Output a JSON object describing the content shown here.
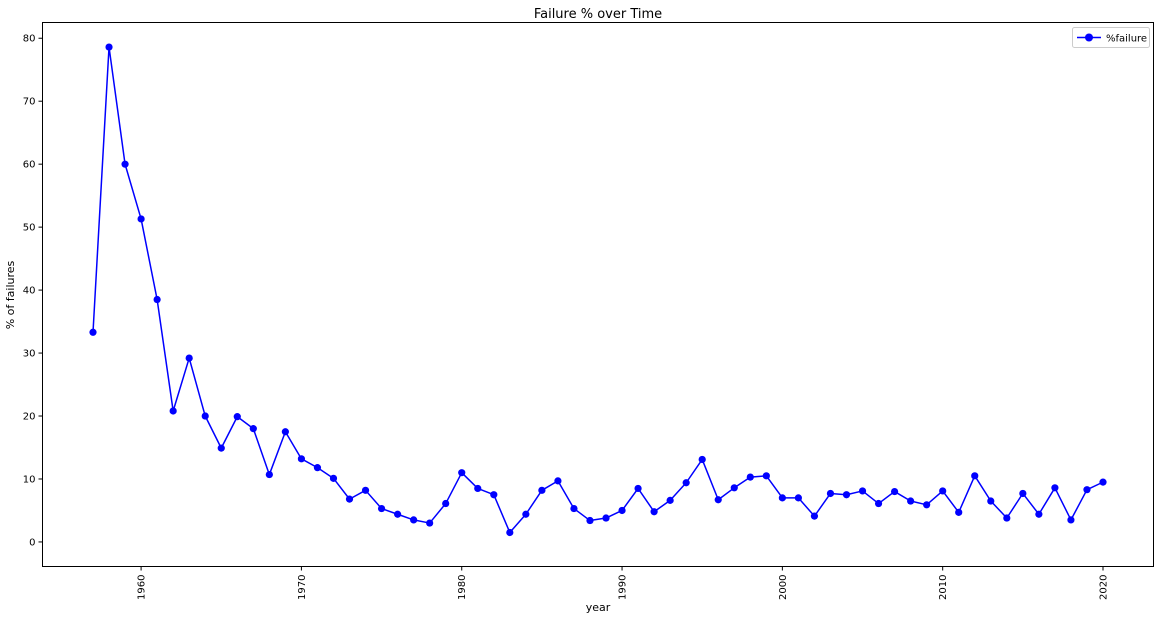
{
  "chart_data": {
    "type": "line",
    "title": "Failure % over Time",
    "xlabel": "year",
    "ylabel": "% of failures",
    "xlim": [
      1953.85,
      2023.15
    ],
    "ylim": [
      -3.9,
      82.5
    ],
    "xticks": [
      1960,
      1970,
      1980,
      1990,
      2000,
      2010,
      2020
    ],
    "yticks": [
      0,
      10,
      20,
      30,
      40,
      50,
      60,
      70,
      80
    ],
    "xtick_rotation": 90,
    "grid": false,
    "legend_position": "top-right",
    "series": [
      {
        "name": "%failure",
        "color": "#0000ff",
        "marker": "circle",
        "x": [
          1957,
          1958,
          1959,
          1960,
          1961,
          1962,
          1963,
          1964,
          1965,
          1966,
          1967,
          1968,
          1969,
          1970,
          1971,
          1972,
          1973,
          1974,
          1975,
          1976,
          1977,
          1978,
          1979,
          1980,
          1981,
          1982,
          1983,
          1984,
          1985,
          1986,
          1987,
          1988,
          1989,
          1990,
          1991,
          1992,
          1993,
          1994,
          1995,
          1996,
          1997,
          1998,
          1999,
          2000,
          2001,
          2002,
          2003,
          2004,
          2005,
          2006,
          2007,
          2008,
          2009,
          2010,
          2011,
          2012,
          2013,
          2014,
          2015,
          2016,
          2017,
          2018,
          2019,
          2020
        ],
        "y": [
          33.3,
          78.6,
          60.0,
          51.3,
          38.5,
          20.8,
          29.2,
          20.0,
          14.9,
          19.9,
          18.0,
          10.7,
          17.5,
          13.2,
          11.8,
          10.1,
          6.8,
          8.2,
          5.3,
          4.4,
          3.5,
          3.0,
          6.1,
          11.0,
          8.5,
          7.5,
          1.5,
          4.4,
          8.2,
          9.7,
          5.3,
          3.4,
          3.8,
          5.0,
          8.5,
          4.8,
          6.6,
          9.4,
          13.1,
          6.7,
          8.6,
          10.3,
          10.5,
          7.0,
          7.0,
          4.1,
          7.7,
          7.5,
          8.1,
          6.1,
          8.0,
          6.5,
          5.9,
          8.1,
          4.7,
          10.5,
          6.5,
          3.8,
          7.7,
          4.4,
          8.6,
          3.5,
          8.3,
          9.5
        ]
      }
    ]
  }
}
